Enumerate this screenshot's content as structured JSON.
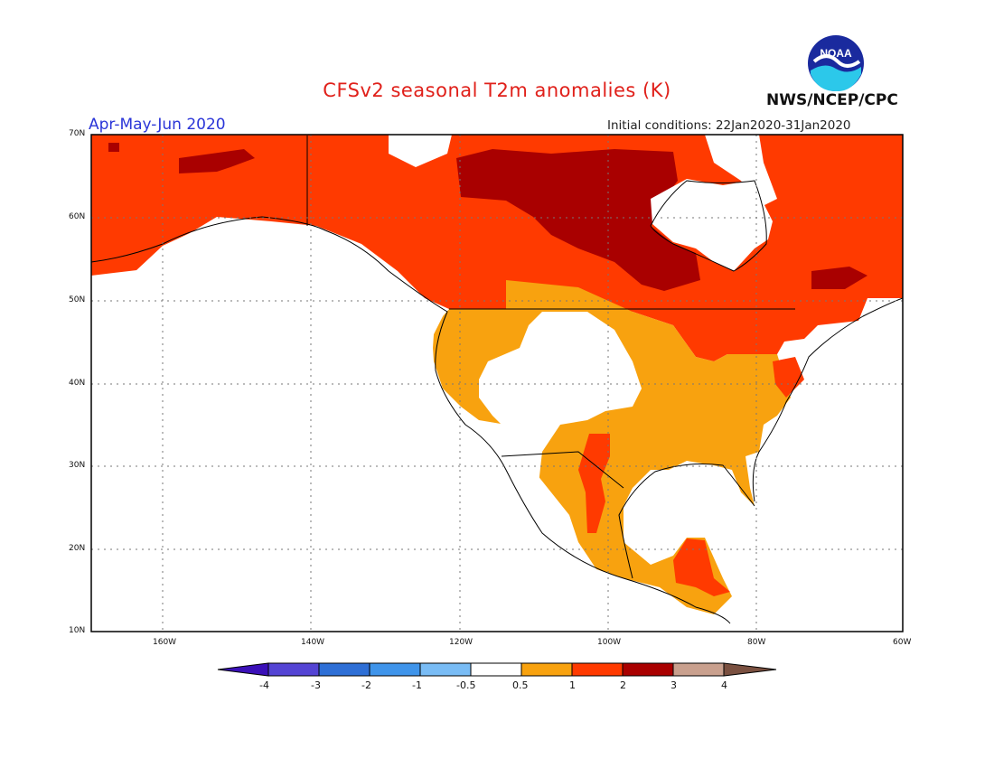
{
  "title": "CFSv2 seasonal T2m anomalies (K)",
  "season": "Apr-May-Jun 2020",
  "initial_conditions": "Initial conditions: 22Jan2020-31Jan2020",
  "agency": "NWS/NCEP/CPC",
  "logo_text": "NOAA",
  "map": {
    "lon_range": [
      -172,
      -60
    ],
    "lat_range": [
      10,
      70
    ],
    "lon_ticks": [
      "160W",
      "140W",
      "120W",
      "100W",
      "80W",
      "60W"
    ],
    "lat_ticks": [
      "10N",
      "20N",
      "30N",
      "40N",
      "50N",
      "60N",
      "70N"
    ],
    "grid": "dotted"
  },
  "colorbar": {
    "labels": [
      "-4",
      "-3",
      "-2",
      "-1",
      "-0.5",
      "0.5",
      "1",
      "2",
      "3",
      "4"
    ],
    "colors": [
      "#3b10b8",
      "#5444d4",
      "#2e6fd6",
      "#3f94ea",
      "#79bcf5",
      "#ffffff",
      "#f8a20f",
      "#ff3a00",
      "#a90000",
      "#c9a08e",
      "#7a5040"
    ]
  },
  "anomaly_colors": {
    "0.5-1": "#f8a20f",
    "1-2": "#ff3a00",
    "2-3": "#a90000"
  }
}
